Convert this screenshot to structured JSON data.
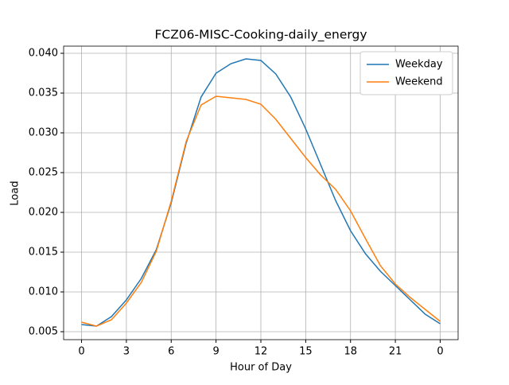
{
  "chart_data": {
    "type": "line",
    "title": "FCZ06-MISC-Cooking-daily_energy",
    "xlabel": "Hour of Day",
    "ylabel": "Load",
    "x": [
      0,
      1,
      2,
      3,
      4,
      5,
      6,
      7,
      8,
      9,
      10,
      11,
      12,
      13,
      14,
      15,
      16,
      17,
      18,
      19,
      20,
      21,
      22,
      23,
      24
    ],
    "series": [
      {
        "name": "Weekday",
        "color": "#1f77b4",
        "values": [
          0.0059,
          0.0057,
          0.0069,
          0.009,
          0.0117,
          0.0153,
          0.0212,
          0.0287,
          0.0345,
          0.0375,
          0.0387,
          0.0393,
          0.0391,
          0.0374,
          0.0345,
          0.0305,
          0.026,
          0.0215,
          0.0177,
          0.0148,
          0.0126,
          0.0108,
          0.009,
          0.0072,
          0.006
        ]
      },
      {
        "name": "Weekend",
        "color": "#ff7f0e",
        "values": [
          0.0062,
          0.0057,
          0.0065,
          0.0086,
          0.0112,
          0.0151,
          0.0214,
          0.0289,
          0.0335,
          0.0346,
          0.0344,
          0.0342,
          0.0336,
          0.0317,
          0.0293,
          0.0269,
          0.0247,
          0.0229,
          0.0202,
          0.0167,
          0.0133,
          0.011,
          0.0093,
          0.0078,
          0.0063
        ]
      }
    ],
    "xlim": [
      -1.2,
      25.2
    ],
    "xticks": [
      0,
      3,
      6,
      9,
      12,
      15,
      18,
      21,
      {
        "value": 24,
        "label": "0"
      }
    ],
    "ylim": [
      0.004,
      0.0409
    ],
    "yticks": [
      0.005,
      {
        "value": 0.01,
        "label": "0.010"
      },
      0.015,
      {
        "value": 0.02,
        "label": "0.020"
      },
      0.025,
      {
        "value": 0.03,
        "label": "0.030"
      },
      0.035,
      {
        "value": 0.04,
        "label": "0.040"
      }
    ],
    "grid": true,
    "legend": "upper-right"
  }
}
